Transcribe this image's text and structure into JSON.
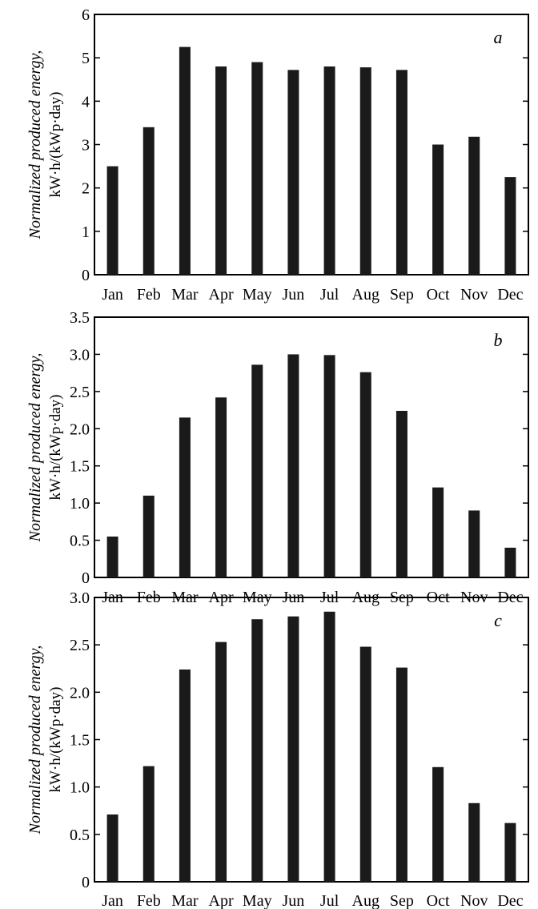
{
  "colors": {
    "bar": "#1a1a1a",
    "axis": "#000000",
    "background": "#ffffff"
  },
  "chart_data": [
    {
      "type": "bar",
      "panel_label": "a",
      "categories": [
        "Jan",
        "Feb",
        "Mar",
        "Apr",
        "May",
        "Jun",
        "Jul",
        "Aug",
        "Sep",
        "Oct",
        "Nov",
        "Dec"
      ],
      "values": [
        2.5,
        3.4,
        5.25,
        4.8,
        4.9,
        4.72,
        4.8,
        4.78,
        4.72,
        3.0,
        3.18,
        2.25
      ],
      "ylabel_line1": "Normalized produced energy,",
      "ylabel_line2": "kW·h/(kWp·day)",
      "ylim": [
        0,
        6
      ],
      "yticks": [
        0,
        1,
        2,
        3,
        4,
        5,
        6
      ],
      "ytick_labels": [
        "0",
        "1",
        "2",
        "3",
        "4",
        "5",
        "6"
      ]
    },
    {
      "type": "bar",
      "panel_label": "b",
      "categories": [
        "Jan",
        "Feb",
        "Mar",
        "Apr",
        "May",
        "Jun",
        "Jul",
        "Aug",
        "Sep",
        "Oct",
        "Nov",
        "Dec"
      ],
      "values": [
        0.55,
        1.1,
        2.15,
        2.42,
        2.86,
        3.0,
        2.99,
        2.76,
        2.24,
        1.21,
        0.9,
        0.4
      ],
      "ylabel_line1": "Normalized produced energy,",
      "ylabel_line2": "kW·h/(kWp·day)",
      "ylim": [
        0,
        3.5
      ],
      "yticks": [
        0,
        0.5,
        1.0,
        1.5,
        2.0,
        2.5,
        3.0,
        3.5
      ],
      "ytick_labels": [
        "0",
        "0.5",
        "1.0",
        "1.5",
        "2.0",
        "2.5",
        "3.0",
        "3.5"
      ]
    },
    {
      "type": "bar",
      "panel_label": "c",
      "categories": [
        "Jan",
        "Feb",
        "Mar",
        "Apr",
        "May",
        "Jun",
        "Jul",
        "Aug",
        "Sep",
        "Oct",
        "Nov",
        "Dec"
      ],
      "values": [
        0.71,
        1.22,
        2.24,
        2.53,
        2.77,
        2.8,
        2.85,
        2.48,
        2.26,
        1.21,
        0.83,
        0.62
      ],
      "ylabel_line1": "Normalized produced energy,",
      "ylabel_line2": "kW·h/(kWp·day)",
      "ylim": [
        0,
        3.0
      ],
      "yticks": [
        0,
        0.5,
        1.0,
        1.5,
        2.0,
        2.5,
        3.0
      ],
      "ytick_labels": [
        "0",
        "0.5",
        "1.0",
        "1.5",
        "2.0",
        "2.5",
        "3.0"
      ]
    }
  ]
}
